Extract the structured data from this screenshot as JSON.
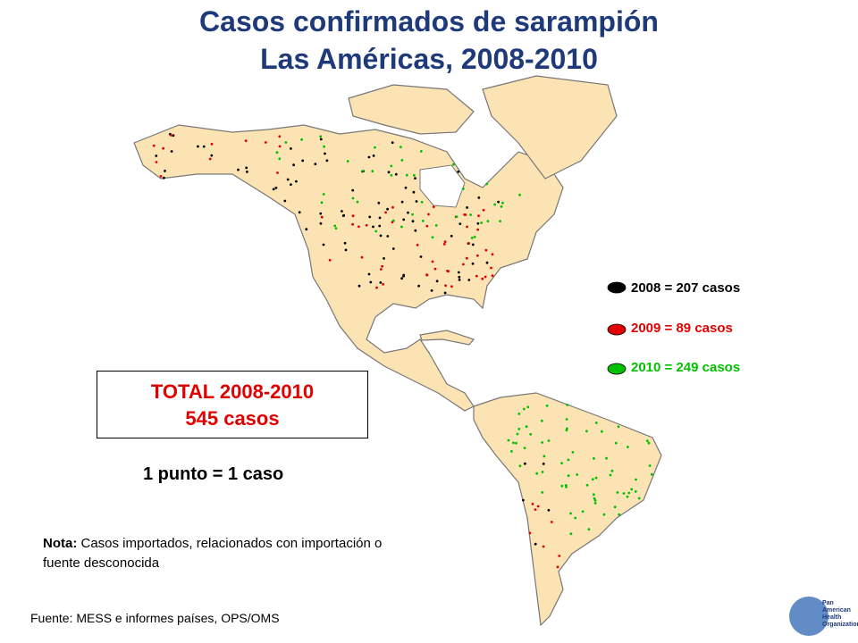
{
  "title": {
    "line1": "Casos confirmados de sarampión",
    "line2": "Las Américas, 2008-2010"
  },
  "legend": [
    {
      "label": "2008 = 207 casos",
      "color": "#000000"
    },
    {
      "label": "2009 = 89 casos",
      "color": "#e00000"
    },
    {
      "label": "2010 =  249 casos",
      "color": "#00c000"
    }
  ],
  "total": {
    "heading": "TOTAL 2008-2010",
    "value": "545 casos"
  },
  "scale_note": "1 punto = 1 caso",
  "note": {
    "label": "Nota:",
    "text": "Casos importados, relacionados con importación o fuente desconocida"
  },
  "source": "Fuente: MESS e informes países, OPS/OMS",
  "logo": {
    "line1": "Pan American",
    "line2": "Health",
    "line3": "Organization"
  }
}
